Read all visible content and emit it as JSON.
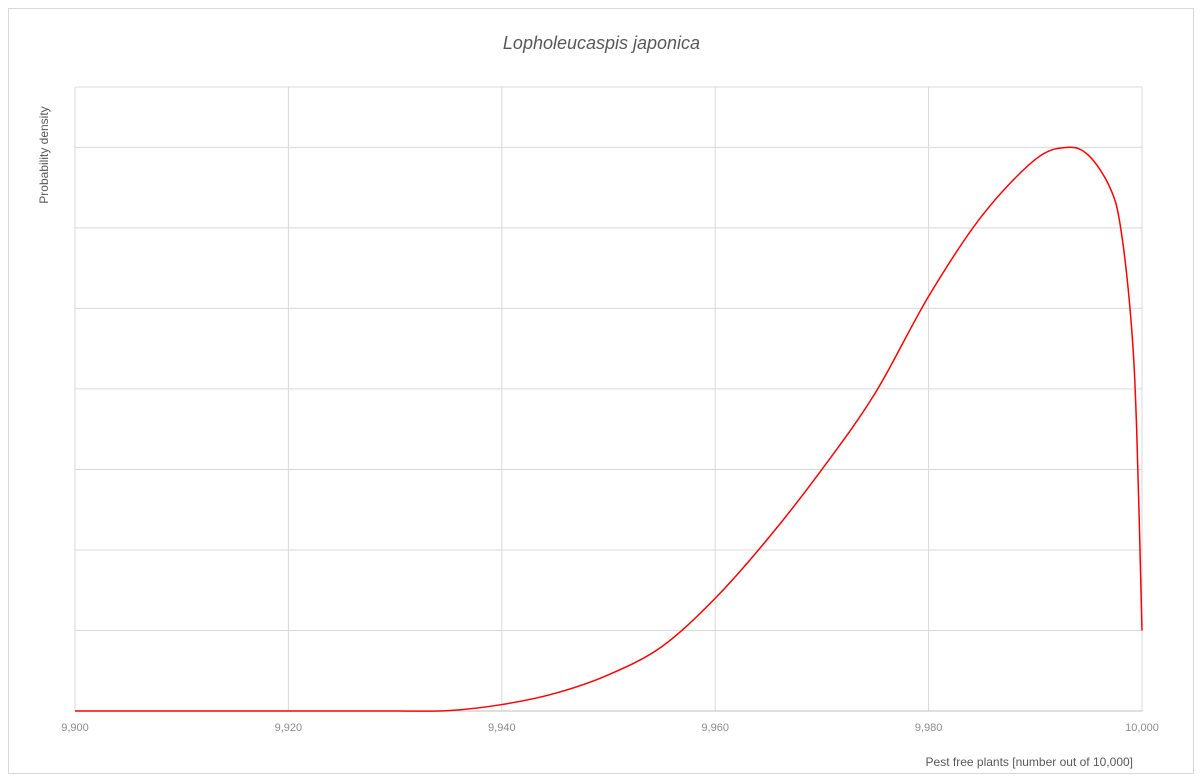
{
  "chart_data": {
    "type": "line",
    "title": "Lopholeucaspis japonica",
    "xlabel": "Pest free plants [number out of 10,000]",
    "ylabel": "Probability density",
    "xlim": [
      9900,
      10000
    ],
    "ylim": [
      0,
      7.75
    ],
    "grid": true,
    "legend": "none",
    "x_tick_labels": [
      "9,900",
      "9,920",
      "9,940",
      "9,960",
      "9,980",
      "10,000"
    ],
    "x_tick_values": [
      9900,
      9920,
      9940,
      9960,
      9980,
      10000
    ],
    "y_gridlines": [
      1,
      2,
      3,
      4,
      5,
      6,
      7
    ],
    "series": [
      {
        "color": "#ff0000",
        "x": [
          9900,
          9910,
          9920,
          9930,
          9935,
          9940,
          9945,
          9950,
          9955,
          9960,
          9965,
          9970,
          9975,
          9980,
          9985,
          9990,
          9993,
          9995,
          9997,
          9998,
          9999,
          9999.5,
          10000
        ],
        "y": [
          0,
          0,
          0,
          0,
          0.005,
          0.08,
          0.22,
          0.45,
          0.8,
          1.4,
          2.15,
          3.0,
          3.95,
          5.15,
          6.15,
          6.85,
          7.0,
          6.9,
          6.5,
          6.0,
          4.8,
          3.5,
          1.0
        ]
      }
    ]
  }
}
